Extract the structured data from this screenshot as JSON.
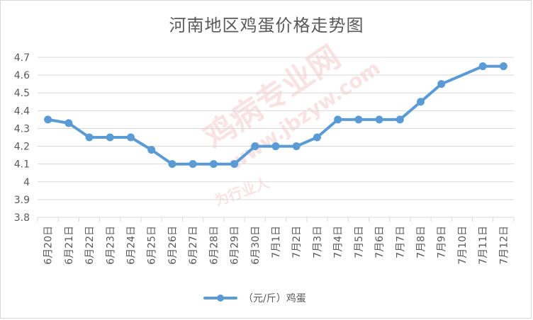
{
  "chart_data": {
    "type": "line",
    "title": "河南地区鸡蛋价格走势图",
    "categories": [
      "6月20日",
      "6月21日",
      "6月22日",
      "6月23日",
      "6月24日",
      "6月25日",
      "6月26日",
      "6月27日",
      "6月28日",
      "6月29日",
      "6月30日",
      "7月1日",
      "7月2日",
      "7月3日",
      "7月4日",
      "7月5日",
      "7月6日",
      "7月7日",
      "7月8日",
      "7月9日",
      "7月10日",
      "7月11日",
      "7月12日"
    ],
    "series": [
      {
        "name": "（元/斤）鸡蛋",
        "values": [
          4.35,
          4.33,
          4.25,
          4.25,
          4.25,
          4.18,
          4.1,
          4.1,
          4.1,
          4.1,
          4.2,
          4.2,
          4.2,
          4.25,
          4.35,
          4.35,
          4.35,
          4.35,
          4.45,
          4.55,
          null,
          4.65,
          4.65
        ]
      }
    ],
    "ylim": [
      3.8,
      4.7
    ],
    "yticks": [
      "3.8",
      "3.9",
      "4",
      "4.1",
      "4.2",
      "4.3",
      "4.4",
      "4.5",
      "4.6",
      "4.7"
    ],
    "grid": true,
    "legend_position": "bottom",
    "line_color": "#5b9bd5",
    "watermark": {
      "main": "鸡病专业网",
      "url": "www.jbzyw.com",
      "slogan": "为行业人"
    }
  }
}
